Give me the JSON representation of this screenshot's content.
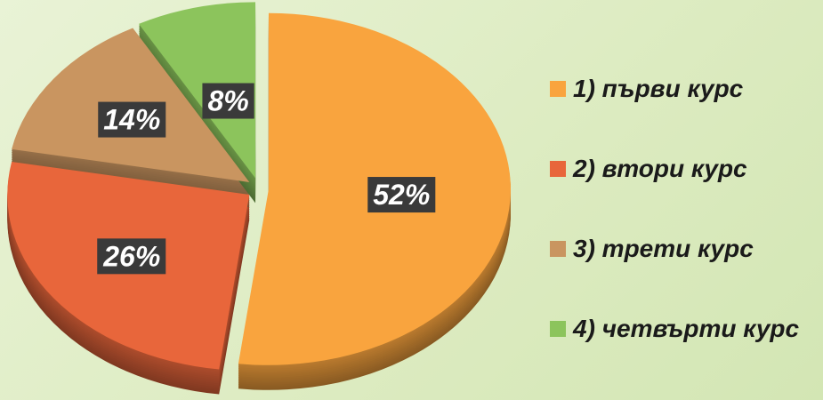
{
  "chart_data": {
    "type": "pie",
    "categories": [
      "1) първи курс",
      "2) втори курс",
      "3) трети курс",
      "4) четвърти курс"
    ],
    "values": [
      52,
      26,
      14,
      8
    ],
    "value_labels": [
      "52%",
      "26%",
      "14%",
      "8%"
    ],
    "colors": [
      "#f9a43e",
      "#e8663b",
      "#c99560",
      "#8cc45c"
    ],
    "legend": "right"
  }
}
